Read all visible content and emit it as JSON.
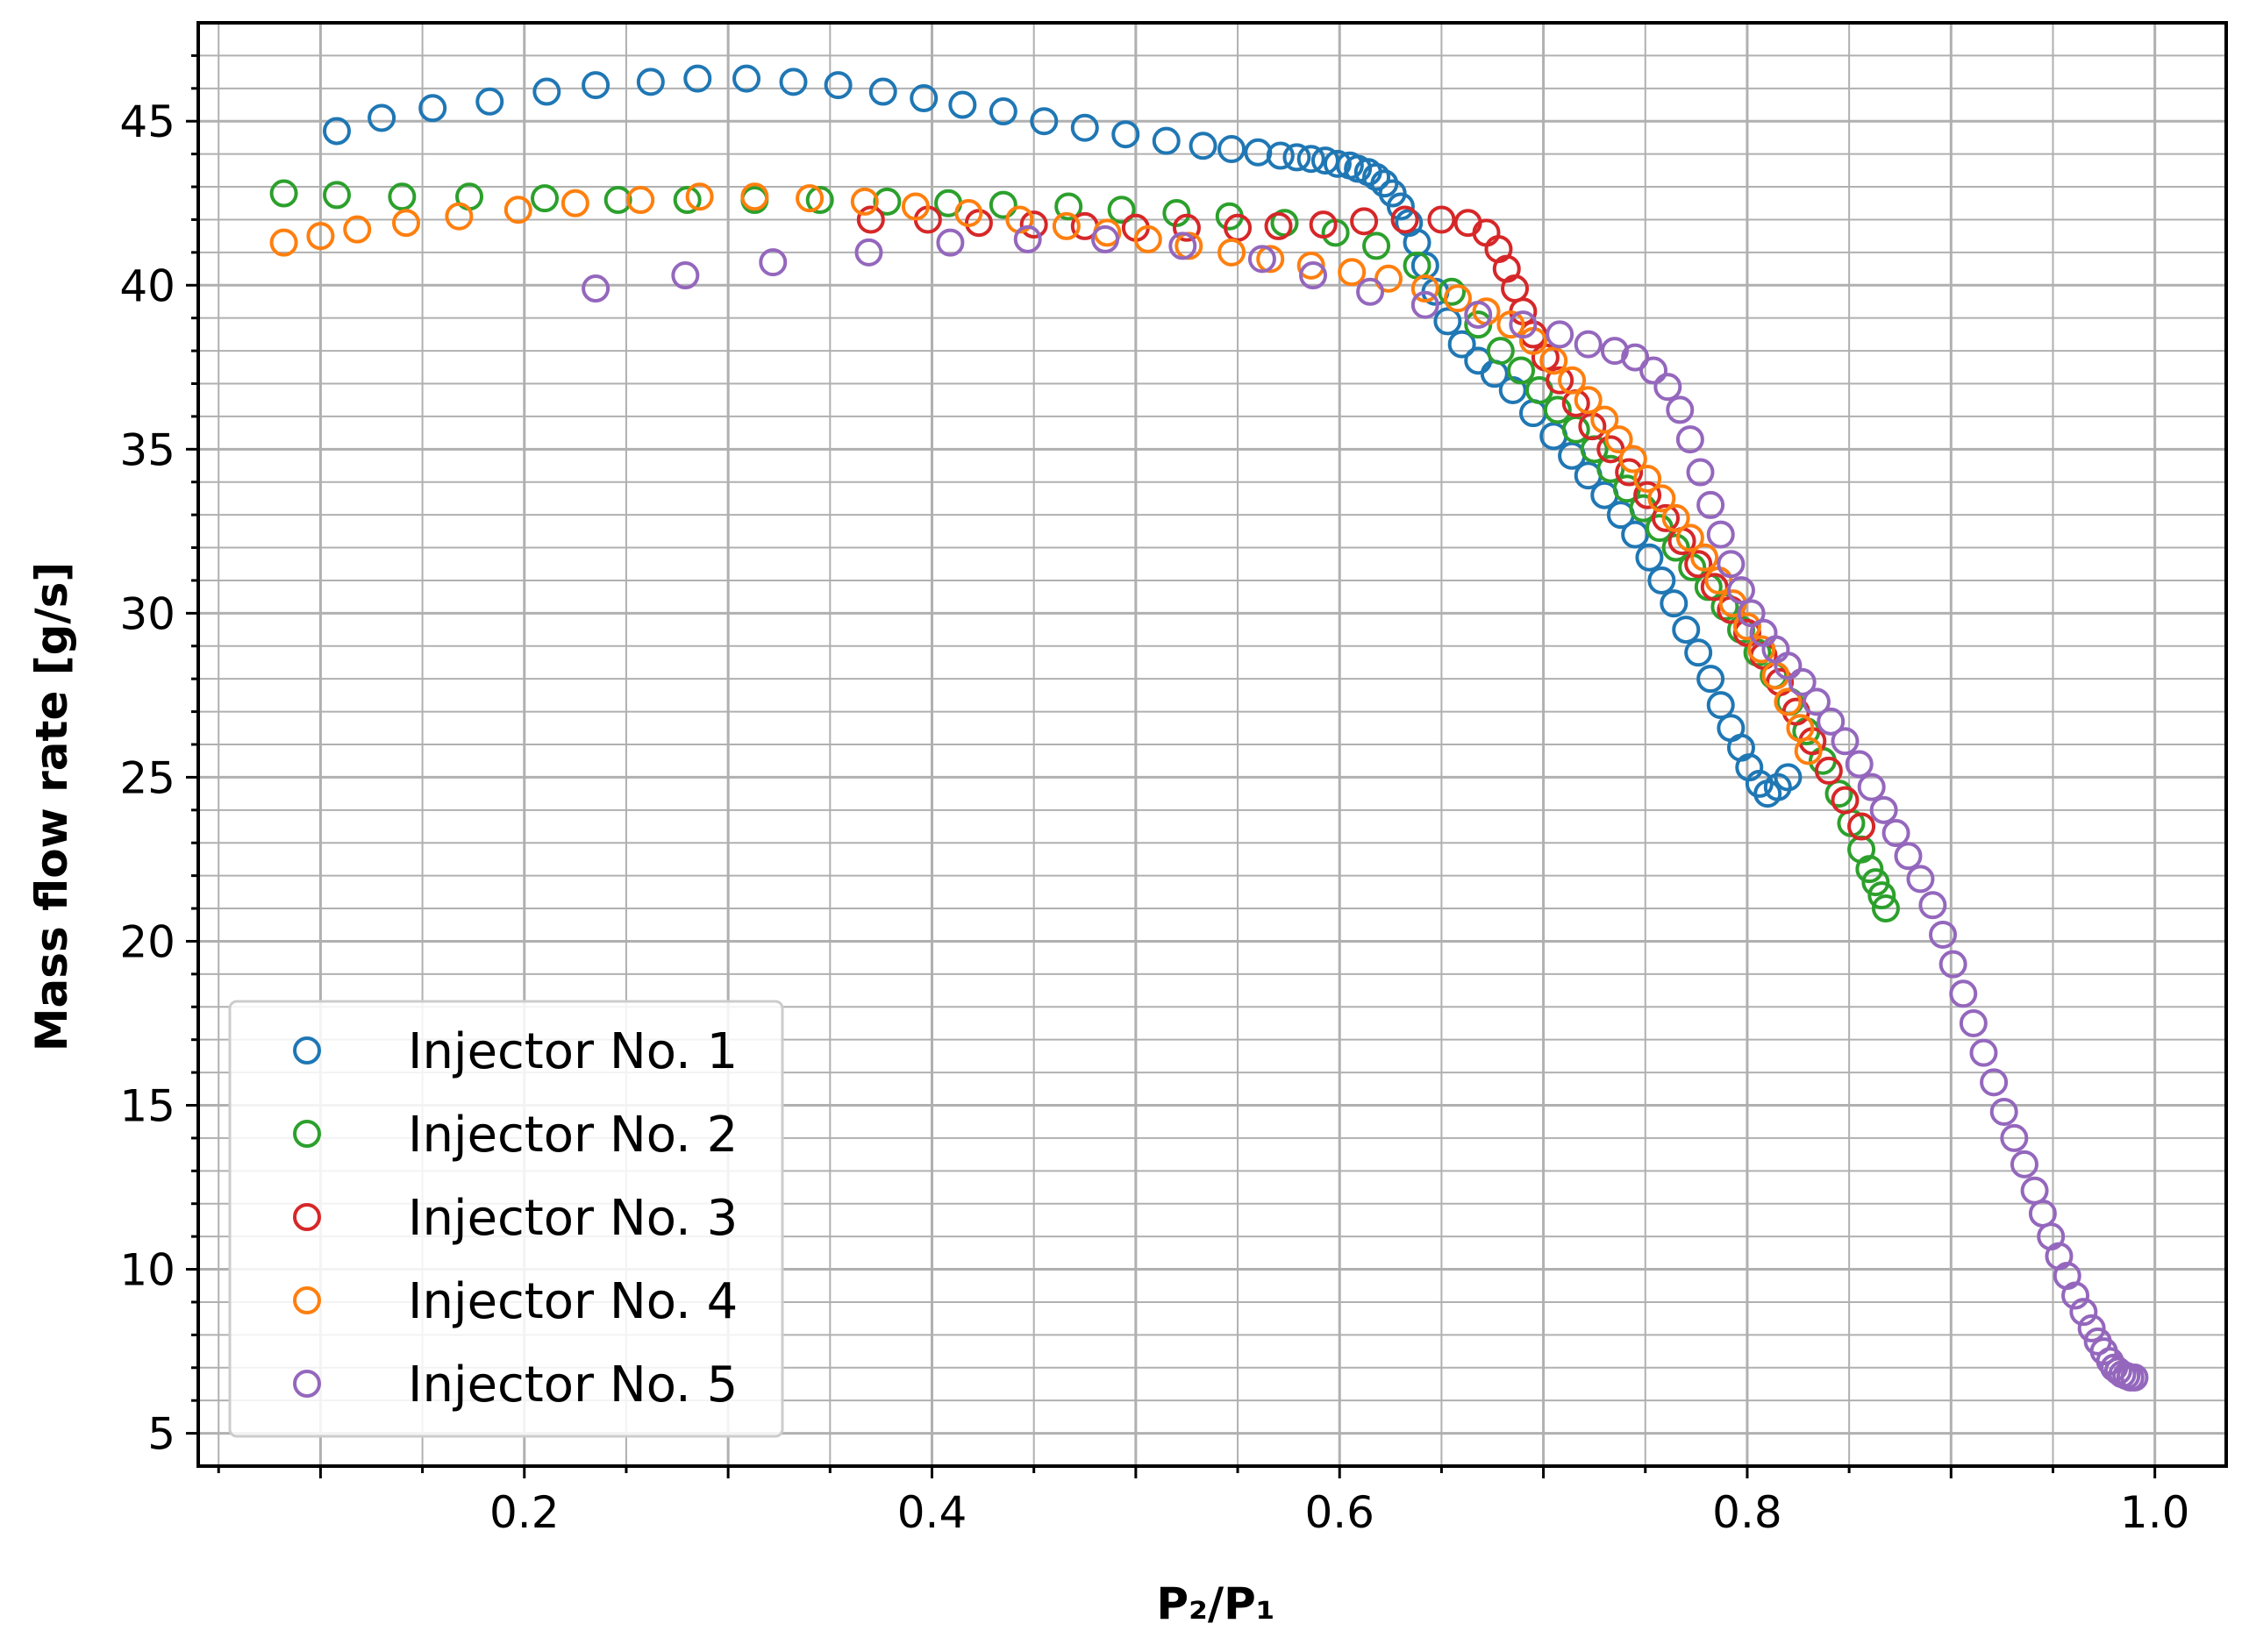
{
  "chart_data": {
    "type": "scatter",
    "title": "",
    "xlabel": "P₂/P₁",
    "ylabel": "Mass flow rate [g/s]",
    "xlim": [
      0.04,
      1.035
    ],
    "ylim": [
      4,
      48
    ],
    "x_ticks": [
      0.2,
      0.4,
      0.6,
      0.8,
      1.0
    ],
    "x_tick_labels": [
      "0.2",
      "0.4",
      "0.6",
      "0.8",
      "1.0"
    ],
    "y_ticks": [
      5,
      10,
      15,
      20,
      25,
      30,
      35,
      40,
      45
    ],
    "y_tick_labels": [
      "5",
      "10",
      "15",
      "20",
      "25",
      "30",
      "35",
      "40",
      "45"
    ],
    "grid": "major and minor",
    "legend_position": "lower-left",
    "series": [
      {
        "name": "Injector No. 1",
        "color": "#1f77b4",
        "x": [
          0.108,
          0.13,
          0.155,
          0.183,
          0.211,
          0.235,
          0.262,
          0.285,
          0.309,
          0.332,
          0.354,
          0.376,
          0.396,
          0.415,
          0.435,
          0.455,
          0.475,
          0.495,
          0.515,
          0.533,
          0.547,
          0.56,
          0.571,
          0.579,
          0.586,
          0.593,
          0.599,
          0.605,
          0.609,
          0.614,
          0.618,
          0.622,
          0.626,
          0.63,
          0.634,
          0.638,
          0.642,
          0.647,
          0.653,
          0.66,
          0.668,
          0.676,
          0.685,
          0.695,
          0.705,
          0.714,
          0.722,
          0.73,
          0.738,
          0.745,
          0.752,
          0.758,
          0.764,
          0.77,
          0.776,
          0.782,
          0.787,
          0.792,
          0.797,
          0.801,
          0.806,
          0.81,
          0.815,
          0.82
        ],
        "y": [
          44.7,
          45.1,
          45.4,
          45.6,
          45.9,
          46.1,
          46.2,
          46.3,
          46.3,
          46.2,
          46.1,
          45.9,
          45.7,
          45.5,
          45.3,
          45.0,
          44.8,
          44.6,
          44.4,
          44.25,
          44.15,
          44.05,
          43.95,
          43.9,
          43.85,
          43.8,
          43.7,
          43.65,
          43.55,
          43.45,
          43.3,
          43.1,
          42.8,
          42.4,
          41.9,
          41.3,
          40.6,
          39.8,
          38.9,
          38.2,
          37.7,
          37.3,
          36.8,
          36.1,
          35.4,
          34.8,
          34.2,
          33.6,
          33.0,
          32.4,
          31.7,
          31.0,
          30.3,
          29.5,
          28.8,
          28.0,
          27.2,
          26.5,
          25.9,
          25.3,
          24.8,
          24.5,
          24.7,
          25.0
        ]
      },
      {
        "name": "Injector No. 2",
        "color": "#2ca02c",
        "x": [
          0.082,
          0.108,
          0.14,
          0.173,
          0.21,
          0.246,
          0.28,
          0.313,
          0.345,
          0.378,
          0.408,
          0.435,
          0.467,
          0.493,
          0.52,
          0.546,
          0.573,
          0.598,
          0.618,
          0.638,
          0.655,
          0.668,
          0.679,
          0.689,
          0.698,
          0.707,
          0.716,
          0.725,
          0.733,
          0.741,
          0.749,
          0.757,
          0.765,
          0.773,
          0.781,
          0.789,
          0.797,
          0.805,
          0.813,
          0.821,
          0.829,
          0.837,
          0.845,
          0.851,
          0.856,
          0.86,
          0.863,
          0.866,
          0.868
        ],
        "y": [
          42.8,
          42.75,
          42.7,
          42.7,
          42.65,
          42.6,
          42.6,
          42.6,
          42.6,
          42.55,
          42.5,
          42.45,
          42.4,
          42.3,
          42.2,
          42.1,
          41.9,
          41.6,
          41.2,
          40.6,
          39.8,
          38.8,
          38.0,
          37.4,
          36.8,
          36.2,
          35.6,
          35.0,
          34.4,
          33.8,
          33.2,
          32.6,
          32.0,
          31.4,
          30.8,
          30.2,
          29.5,
          28.8,
          28.1,
          27.3,
          26.4,
          25.5,
          24.5,
          23.6,
          22.8,
          22.2,
          21.8,
          21.4,
          21.0
        ]
      },
      {
        "name": "Injector No. 3",
        "color": "#d62728",
        "x": [
          0.37,
          0.398,
          0.423,
          0.45,
          0.475,
          0.5,
          0.525,
          0.55,
          0.57,
          0.592,
          0.612,
          0.632,
          0.65,
          0.663,
          0.672,
          0.678,
          0.682,
          0.686,
          0.69,
          0.695,
          0.701,
          0.708,
          0.716,
          0.724,
          0.733,
          0.742,
          0.751,
          0.76,
          0.768,
          0.776,
          0.784,
          0.792,
          0.8,
          0.808,
          0.816,
          0.824,
          0.832,
          0.84,
          0.848,
          0.856
        ],
        "y": [
          42.0,
          42.0,
          41.9,
          41.85,
          41.8,
          41.75,
          41.75,
          41.75,
          41.8,
          41.85,
          41.95,
          42.0,
          42.0,
          41.9,
          41.6,
          41.1,
          40.5,
          39.9,
          39.2,
          38.5,
          37.8,
          37.1,
          36.4,
          35.7,
          35.0,
          34.3,
          33.6,
          32.9,
          32.2,
          31.5,
          30.8,
          30.1,
          29.4,
          28.7,
          27.9,
          27.0,
          26.1,
          25.2,
          24.3,
          23.5
        ]
      },
      {
        "name": "Injector No. 4",
        "color": "#ff7f0e",
        "x": [
          0.082,
          0.1,
          0.118,
          0.142,
          0.168,
          0.197,
          0.225,
          0.257,
          0.286,
          0.313,
          0.34,
          0.367,
          0.392,
          0.418,
          0.443,
          0.466,
          0.486,
          0.506,
          0.526,
          0.547,
          0.566,
          0.586,
          0.606,
          0.624,
          0.642,
          0.658,
          0.672,
          0.684,
          0.695,
          0.705,
          0.714,
          0.722,
          0.73,
          0.737,
          0.744,
          0.751,
          0.758,
          0.765,
          0.772,
          0.779,
          0.786,
          0.793,
          0.8,
          0.807,
          0.814,
          0.82,
          0.826,
          0.83
        ],
        "y": [
          41.3,
          41.5,
          41.7,
          41.9,
          42.1,
          42.3,
          42.5,
          42.6,
          42.7,
          42.7,
          42.65,
          42.55,
          42.4,
          42.2,
          42.0,
          41.8,
          41.6,
          41.4,
          41.2,
          41.0,
          40.8,
          40.6,
          40.4,
          40.2,
          39.9,
          39.6,
          39.2,
          38.8,
          38.3,
          37.7,
          37.1,
          36.5,
          35.9,
          35.3,
          34.7,
          34.1,
          33.5,
          32.9,
          32.3,
          31.7,
          31.0,
          30.3,
          29.6,
          28.9,
          28.1,
          27.3,
          26.5,
          25.8
        ]
      },
      {
        "name": "Injector No. 5",
        "color": "#9467bd",
        "x": [
          0.235,
          0.279,
          0.322,
          0.369,
          0.409,
          0.447,
          0.485,
          0.523,
          0.562,
          0.587,
          0.615,
          0.642,
          0.668,
          0.69,
          0.708,
          0.722,
          0.735,
          0.745,
          0.754,
          0.761,
          0.767,
          0.772,
          0.777,
          0.782,
          0.787,
          0.792,
          0.797,
          0.802,
          0.808,
          0.814,
          0.82,
          0.827,
          0.834,
          0.841,
          0.848,
          0.855,
          0.861,
          0.867,
          0.873,
          0.879,
          0.885,
          0.891,
          0.896,
          0.901,
          0.906,
          0.911,
          0.916,
          0.921,
          0.926,
          0.931,
          0.936,
          0.941,
          0.945,
          0.949,
          0.953,
          0.957,
          0.961,
          0.965,
          0.969,
          0.972,
          0.975,
          0.978,
          0.98,
          0.982,
          0.984,
          0.986,
          0.988,
          0.99
        ],
        "y": [
          39.9,
          40.3,
          40.7,
          41.0,
          41.3,
          41.4,
          41.4,
          41.2,
          40.8,
          40.3,
          39.8,
          39.4,
          39.1,
          38.8,
          38.5,
          38.2,
          38.0,
          37.8,
          37.4,
          36.9,
          36.2,
          35.3,
          34.3,
          33.3,
          32.4,
          31.5,
          30.7,
          30.0,
          29.4,
          28.9,
          28.4,
          27.9,
          27.3,
          26.7,
          26.1,
          25.4,
          24.7,
          24.0,
          23.3,
          22.6,
          21.9,
          21.1,
          20.2,
          19.3,
          18.4,
          17.5,
          16.6,
          15.7,
          14.8,
          14.0,
          13.2,
          12.4,
          11.7,
          11.0,
          10.4,
          9.8,
          9.2,
          8.7,
          8.2,
          7.8,
          7.5,
          7.2,
          7.0,
          6.9,
          6.8,
          6.75,
          6.7,
          6.7
        ]
      }
    ]
  }
}
